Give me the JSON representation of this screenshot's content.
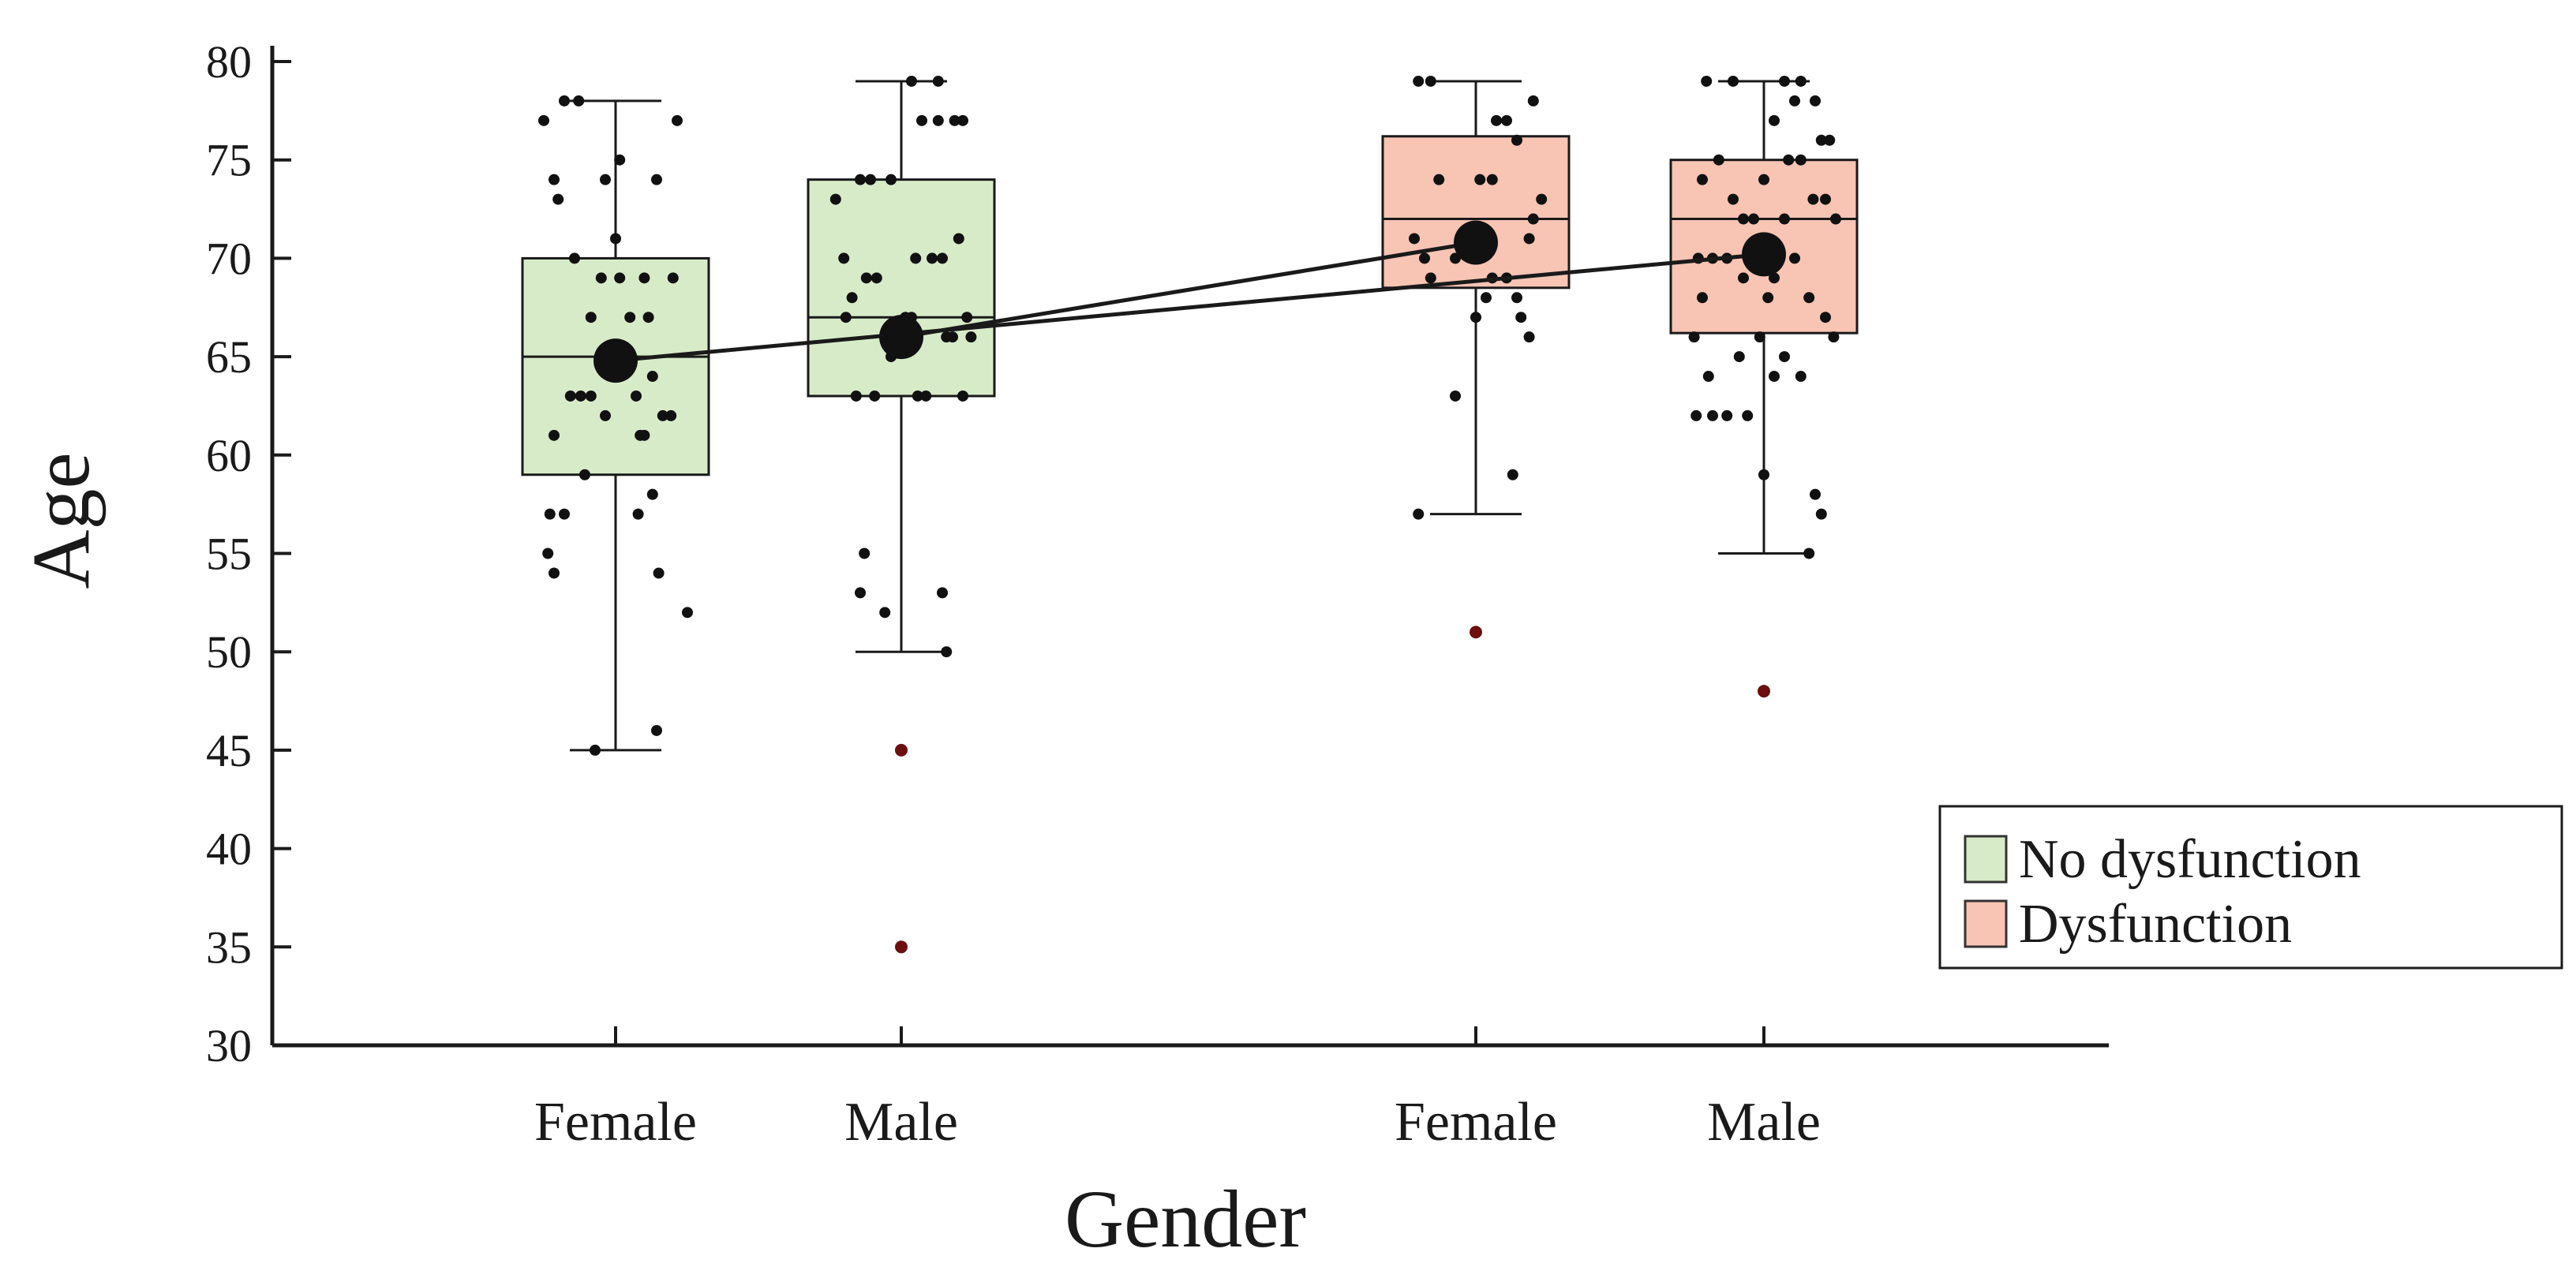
{
  "chart_data": {
    "type": "boxplot",
    "title": "",
    "xlabel": "Gender",
    "ylabel": "Age",
    "ylim": [
      30,
      80
    ],
    "yticks": [
      "30",
      "35",
      "40",
      "45",
      "50",
      "55",
      "60",
      "65",
      "70",
      "75",
      "80"
    ],
    "legend_position": "right",
    "legend": [
      {
        "name": "No dysfunction",
        "color": "#d8ebc9"
      },
      {
        "name": "Dysfunction",
        "color": "#f8c4b4"
      }
    ],
    "colors": {
      "no_dysfunction": "#d8ebc9",
      "dysfunction": "#f8c4b4",
      "points": "#111111",
      "outliers": "#6b0f0f",
      "lines": "#1a1a1a"
    },
    "groups": [
      {
        "label": "Female",
        "series": "No dysfunction",
        "q1": 59,
        "median": 65,
        "q3": 70,
        "whisker_low": 45,
        "whisker_high": 78,
        "mean": 64.8,
        "outliers": [],
        "points": [
          [
            -0.35,
            77
          ],
          [
            -0.25,
            78
          ],
          [
            -0.18,
            78
          ],
          [
            -0.3,
            74
          ],
          [
            -0.05,
            74
          ],
          [
            0.02,
            75
          ],
          [
            0.2,
            74
          ],
          [
            0.3,
            77
          ],
          [
            -0.28,
            73
          ],
          [
            -0.2,
            70
          ],
          [
            0,
            71
          ],
          [
            -0.07,
            69
          ],
          [
            0.02,
            69
          ],
          [
            0.14,
            69
          ],
          [
            0.28,
            69
          ],
          [
            -0.12,
            67
          ],
          [
            0.07,
            67
          ],
          [
            0.16,
            67
          ],
          [
            -0.22,
            63
          ],
          [
            -0.17,
            63
          ],
          [
            -0.12,
            63
          ],
          [
            0.1,
            63
          ],
          [
            0.18,
            64
          ],
          [
            0.23,
            62
          ],
          [
            0.27,
            62
          ],
          [
            -0.05,
            62
          ],
          [
            0.14,
            61
          ],
          [
            0.12,
            61
          ],
          [
            -0.3,
            61
          ],
          [
            -0.32,
            57
          ],
          [
            -0.25,
            57
          ],
          [
            -0.15,
            59
          ],
          [
            0.18,
            58
          ],
          [
            0.11,
            57
          ],
          [
            -0.33,
            55
          ],
          [
            -0.3,
            54
          ],
          [
            0.21,
            54
          ],
          [
            0.35,
            52
          ],
          [
            -0.1,
            45
          ],
          [
            0.2,
            46
          ]
        ]
      },
      {
        "label": "Male",
        "series": "No dysfunction",
        "q1": 63,
        "median": 67,
        "q3": 74,
        "whisker_low": 50,
        "whisker_high": 79,
        "mean": 66,
        "outliers": [
          45,
          35
        ],
        "points": [
          [
            -0.32,
            73
          ],
          [
            -0.2,
            74
          ],
          [
            -0.15,
            74
          ],
          [
            -0.05,
            74
          ],
          [
            0.1,
            77
          ],
          [
            0.18,
            77
          ],
          [
            0.26,
            77
          ],
          [
            0.3,
            77
          ],
          [
            0.05,
            79
          ],
          [
            0.18,
            79
          ],
          [
            -0.28,
            70
          ],
          [
            -0.24,
            68
          ],
          [
            -0.17,
            69
          ],
          [
            -0.12,
            69
          ],
          [
            0.07,
            70
          ],
          [
            0.15,
            70
          ],
          [
            0.2,
            70
          ],
          [
            0.28,
            71
          ],
          [
            0.32,
            67
          ],
          [
            0.25,
            66
          ],
          [
            0.05,
            67
          ],
          [
            -0.27,
            67
          ],
          [
            0.3,
            63
          ],
          [
            -0.22,
            63
          ],
          [
            -0.13,
            63
          ],
          [
            -0.05,
            65
          ],
          [
            0.08,
            63
          ],
          [
            0.12,
            63
          ],
          [
            0.22,
            66
          ],
          [
            -0.18,
            55
          ],
          [
            -0.2,
            53
          ],
          [
            -0.08,
            52
          ],
          [
            0.2,
            53
          ],
          [
            0.22,
            50
          ],
          [
            0.02,
            67
          ],
          [
            0.34,
            66
          ]
        ]
      },
      {
        "label": "Female",
        "series": "Dysfunction",
        "q1": 68.5,
        "median": 72,
        "q3": 76.2,
        "whisker_low": 57,
        "whisker_high": 79,
        "mean": 70.8,
        "outliers": [
          51
        ],
        "points": [
          [
            -0.28,
            79
          ],
          [
            -0.22,
            79
          ],
          [
            0.1,
            77
          ],
          [
            0.15,
            77
          ],
          [
            0.28,
            78
          ],
          [
            0.2,
            76
          ],
          [
            -0.18,
            74
          ],
          [
            0.02,
            74
          ],
          [
            0.08,
            74
          ],
          [
            -0.3,
            71
          ],
          [
            -0.25,
            70
          ],
          [
            -0.1,
            70
          ],
          [
            0,
            70
          ],
          [
            0.08,
            69
          ],
          [
            0.15,
            69
          ],
          [
            0.26,
            71
          ],
          [
            0.32,
            73
          ],
          [
            0.28,
            72
          ],
          [
            -0.22,
            69
          ],
          [
            0.05,
            68
          ],
          [
            0.2,
            68
          ],
          [
            0.22,
            67
          ],
          [
            0.26,
            66
          ],
          [
            0,
            67
          ],
          [
            -0.1,
            63
          ],
          [
            0.18,
            59
          ],
          [
            -0.28,
            57
          ]
        ]
      },
      {
        "label": "Male",
        "series": "Dysfunction",
        "q1": 66.2,
        "median": 72,
        "q3": 75,
        "whisker_low": 55,
        "whisker_high": 79,
        "mean": 70.2,
        "outliers": [
          48
        ],
        "points": [
          [
            -0.28,
            79
          ],
          [
            -0.15,
            79
          ],
          [
            0.1,
            79
          ],
          [
            0.18,
            79
          ],
          [
            0.25,
            78
          ],
          [
            0.28,
            76
          ],
          [
            0.32,
            76
          ],
          [
            0.15,
            78
          ],
          [
            0.05,
            77
          ],
          [
            -0.3,
            74
          ],
          [
            -0.22,
            75
          ],
          [
            -0.15,
            73
          ],
          [
            -0.1,
            72
          ],
          [
            0,
            74
          ],
          [
            0.1,
            72
          ],
          [
            0.18,
            75
          ],
          [
            0.24,
            73
          ],
          [
            0.3,
            73
          ],
          [
            0.35,
            72
          ],
          [
            -0.32,
            70
          ],
          [
            -0.25,
            70
          ],
          [
            -0.18,
            70
          ],
          [
            -0.1,
            69
          ],
          [
            0.05,
            69
          ],
          [
            0.15,
            70
          ],
          [
            0.22,
            68
          ],
          [
            0.3,
            67
          ],
          [
            0.34,
            66
          ],
          [
            -0.34,
            66
          ],
          [
            -0.27,
            64
          ],
          [
            -0.12,
            65
          ],
          [
            -0.02,
            66
          ],
          [
            0.1,
            65
          ],
          [
            0.18,
            64
          ],
          [
            0.05,
            64
          ],
          [
            -0.33,
            62
          ],
          [
            -0.25,
            62
          ],
          [
            -0.18,
            62
          ],
          [
            -0.08,
            62
          ],
          [
            0,
            59
          ],
          [
            0.25,
            58
          ],
          [
            0.28,
            57
          ],
          [
            0.22,
            55
          ],
          [
            -0.3,
            68
          ],
          [
            0.02,
            68
          ],
          [
            -0.05,
            72
          ],
          [
            0.12,
            75
          ]
        ]
      }
    ],
    "mean_lines": [
      [
        0,
        3
      ],
      [
        1,
        2
      ]
    ]
  }
}
